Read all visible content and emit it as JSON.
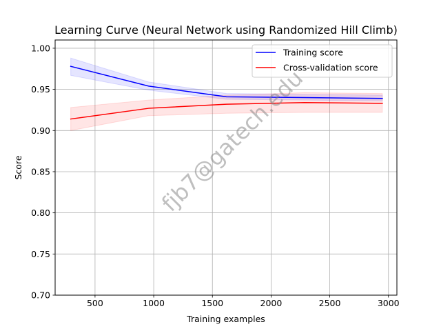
{
  "chart_data": {
    "type": "line",
    "title": "Learning Curve (Neural Network using Randomized Hill Climb)",
    "xlabel": "Training examples",
    "ylabel": "Score",
    "xlim": [
      160,
      3072
    ],
    "ylim": [
      0.7,
      1.01
    ],
    "x_ticks": [
      500,
      1000,
      1500,
      2000,
      2500,
      3000
    ],
    "y_ticks": [
      0.7,
      0.75,
      0.8,
      0.85,
      0.9,
      0.95,
      1.0
    ],
    "x_tick_labels": [
      "500",
      "1000",
      "1500",
      "2000",
      "2500",
      "3000"
    ],
    "y_tick_labels": [
      "0.70",
      "0.75",
      "0.80",
      "0.85",
      "0.90",
      "0.95",
      "1.00"
    ],
    "grid": true,
    "legend_position": "upper right",
    "x": [
      293,
      957,
      1620,
      2285,
      2948
    ],
    "series": [
      {
        "name": "Training score",
        "color": "#0000ff",
        "fill_color": "#0000ff",
        "values": [
          0.978,
          0.954,
          0.941,
          0.94,
          0.939
        ],
        "lower": [
          0.967,
          0.949,
          0.938,
          0.937,
          0.936
        ],
        "upper": [
          0.988,
          0.959,
          0.945,
          0.944,
          0.943
        ]
      },
      {
        "name": "Cross-validation score",
        "color": "#ff0000",
        "fill_color": "#ff0000",
        "values": [
          0.914,
          0.927,
          0.932,
          0.934,
          0.933
        ],
        "lower": [
          0.9,
          0.918,
          0.921,
          0.922,
          0.922
        ],
        "upper": [
          0.928,
          0.937,
          0.943,
          0.946,
          0.945
        ]
      }
    ]
  },
  "watermark": {
    "text": "fjb7@gatech.edu",
    "color": "#808080"
  }
}
